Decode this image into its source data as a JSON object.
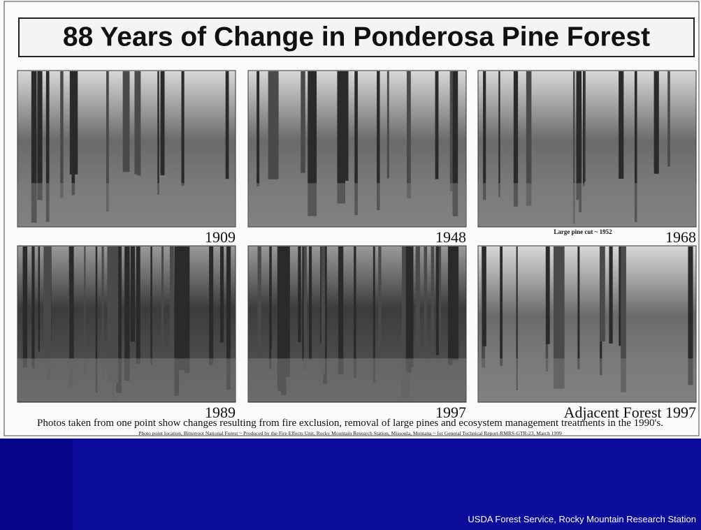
{
  "poster": {
    "title": "88 Years of Change in Ponderosa Pine Forest",
    "photos": [
      {
        "caption": "1909"
      },
      {
        "caption": "1948"
      },
      {
        "caption": "1968",
        "note": "Large pine cut ~ 1952"
      },
      {
        "caption": "1989"
      },
      {
        "caption": "1997"
      },
      {
        "caption": "Adjacent Forest 1997"
      }
    ],
    "description": "Photos taken from one point show changes resulting from fire exclusion, removal of large pines and ecosystem management treatments in the 1990's.",
    "credit": "Photo point location, Bitterroot National Forest ~ Produced by the Fire Effects Unit, Rocky Mountain Research Station, Missoula, Montana ~ for  General Technical Report-RMRS-GTR-23, March 1999"
  },
  "footer": "USDA Forest Service, Rocky Mountain Research Station"
}
